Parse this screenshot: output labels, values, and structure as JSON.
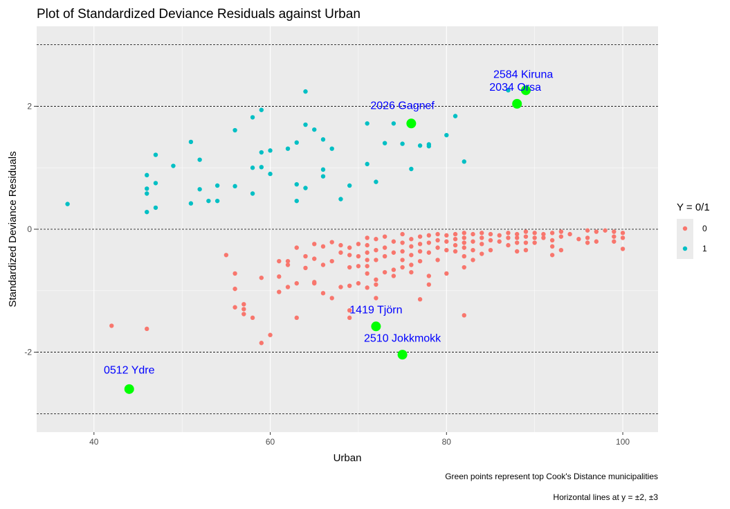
{
  "chart_data": {
    "type": "scatter",
    "title": "Plot of Standardized Deviance Residuals against Urban",
    "xlabel": "Urban",
    "ylabel": "Standardized Deviance Residuals",
    "xlim": [
      33.5,
      104
    ],
    "ylim": [
      -3.3,
      3.3
    ],
    "xticks": [
      40,
      60,
      80,
      100
    ],
    "yticks": [
      -2,
      0,
      2
    ],
    "reference_lines_y": [
      -3,
      -2,
      0,
      2,
      3
    ],
    "grid": true,
    "legend": {
      "title": "Y = 0/1",
      "placement": "right",
      "entries": [
        {
          "label": "0",
          "color": "#F8766D"
        },
        {
          "label": "1",
          "color": "#00BFC4"
        }
      ]
    },
    "captions": [
      "Green points represent top Cook's Distance municipalities",
      "Horizontal lines at y = ±2, ±3"
    ],
    "series": [
      {
        "name": "1",
        "color": "#00BFC4",
        "points": [
          [
            37,
            0.41
          ],
          [
            46,
            0.88
          ],
          [
            46,
            0.66
          ],
          [
            46,
            0.58
          ],
          [
            46,
            0.28
          ],
          [
            47,
            1.21
          ],
          [
            47,
            0.75
          ],
          [
            47,
            0.35
          ],
          [
            49,
            1.03
          ],
          [
            51,
            1.42
          ],
          [
            51,
            0.42
          ],
          [
            52,
            1.13
          ],
          [
            52,
            0.65
          ],
          [
            53,
            0.46
          ],
          [
            54,
            0.71
          ],
          [
            54,
            0.46
          ],
          [
            56,
            1.61
          ],
          [
            56,
            0.7
          ],
          [
            58,
            1.82
          ],
          [
            58,
            1.0
          ],
          [
            58,
            0.58
          ],
          [
            59,
            1.94
          ],
          [
            59,
            1.25
          ],
          [
            59,
            1.01
          ],
          [
            60,
            1.28
          ],
          [
            60,
            0.9
          ],
          [
            62,
            1.31
          ],
          [
            63,
            1.41
          ],
          [
            63,
            0.73
          ],
          [
            63,
            0.46
          ],
          [
            64,
            2.24
          ],
          [
            64,
            1.7
          ],
          [
            64,
            0.67
          ],
          [
            65,
            1.62
          ],
          [
            66,
            1.46
          ],
          [
            66,
            0.97
          ],
          [
            66,
            0.86
          ],
          [
            67,
            1.31
          ],
          [
            68,
            0.49
          ],
          [
            69,
            0.71
          ],
          [
            71,
            1.72
          ],
          [
            71,
            1.06
          ],
          [
            72,
            0.77
          ],
          [
            73,
            1.4
          ],
          [
            74,
            1.72
          ],
          [
            75,
            1.39
          ],
          [
            76,
            0.98
          ],
          [
            77,
            1.36
          ],
          [
            78,
            1.38
          ],
          [
            78,
            1.35
          ],
          [
            80,
            1.53
          ],
          [
            81,
            1.84
          ],
          [
            82,
            1.1
          ],
          [
            87,
            2.26
          ]
        ]
      },
      {
        "name": "0",
        "color": "#F8766D",
        "points": [
          [
            42,
            -1.57
          ],
          [
            46,
            -1.62
          ],
          [
            55,
            -0.42
          ],
          [
            56,
            -0.72
          ],
          [
            56,
            -0.97
          ],
          [
            56,
            -1.27
          ],
          [
            57,
            -1.22
          ],
          [
            57,
            -1.3
          ],
          [
            57,
            -1.38
          ],
          [
            58,
            -1.44
          ],
          [
            59,
            -0.79
          ],
          [
            59,
            -1.85
          ],
          [
            60,
            -1.72
          ],
          [
            61,
            -0.52
          ],
          [
            61,
            -0.77
          ],
          [
            61,
            -1.02
          ],
          [
            62,
            -0.52
          ],
          [
            62,
            -0.58
          ],
          [
            62,
            -0.94
          ],
          [
            63,
            -0.3
          ],
          [
            63,
            -0.88
          ],
          [
            63,
            -1.44
          ],
          [
            64,
            -0.44
          ],
          [
            64,
            -0.63
          ],
          [
            65,
            -0.24
          ],
          [
            65,
            -0.48
          ],
          [
            65,
            -0.86
          ],
          [
            65,
            -0.88
          ],
          [
            66,
            -0.28
          ],
          [
            66,
            -0.58
          ],
          [
            66,
            -1.04
          ],
          [
            67,
            -0.21
          ],
          [
            67,
            -0.52
          ],
          [
            67,
            -1.12
          ],
          [
            68,
            -0.26
          ],
          [
            68,
            -0.38
          ],
          [
            68,
            -0.94
          ],
          [
            69,
            -0.3
          ],
          [
            69,
            -0.42
          ],
          [
            69,
            -0.62
          ],
          [
            69,
            -0.92
          ],
          [
            69,
            -1.32
          ],
          [
            69,
            -1.44
          ],
          [
            70,
            -0.24
          ],
          [
            70,
            -0.44
          ],
          [
            70,
            -0.6
          ],
          [
            70,
            -0.88
          ],
          [
            71,
            -0.14
          ],
          [
            71,
            -0.26
          ],
          [
            71,
            -0.38
          ],
          [
            71,
            -0.5
          ],
          [
            71,
            -0.6
          ],
          [
            71,
            -0.72
          ],
          [
            71,
            -0.95
          ],
          [
            72,
            -0.16
          ],
          [
            72,
            -0.34
          ],
          [
            72,
            -0.5
          ],
          [
            72,
            -0.82
          ],
          [
            72,
            -0.9
          ],
          [
            72,
            -1.12
          ],
          [
            73,
            -0.12
          ],
          [
            73,
            -0.3
          ],
          [
            73,
            -0.44
          ],
          [
            73,
            -0.7
          ],
          [
            74,
            -0.2
          ],
          [
            74,
            -0.38
          ],
          [
            74,
            -0.66
          ],
          [
            74,
            -0.76
          ],
          [
            75,
            -0.08
          ],
          [
            75,
            -0.22
          ],
          [
            75,
            -0.36
          ],
          [
            75,
            -0.5
          ],
          [
            75,
            -0.62
          ],
          [
            76,
            -0.16
          ],
          [
            76,
            -0.28
          ],
          [
            76,
            -0.42
          ],
          [
            76,
            -0.58
          ],
          [
            76,
            -0.7
          ],
          [
            77,
            -0.12
          ],
          [
            77,
            -0.24
          ],
          [
            77,
            -0.36
          ],
          [
            77,
            -0.52
          ],
          [
            77,
            -1.14
          ],
          [
            78,
            -0.1
          ],
          [
            78,
            -0.22
          ],
          [
            78,
            -0.38
          ],
          [
            78,
            -0.76
          ],
          [
            78,
            -0.9
          ],
          [
            79,
            -0.08
          ],
          [
            79,
            -0.18
          ],
          [
            79,
            -0.3
          ],
          [
            79,
            -0.5
          ],
          [
            80,
            -0.1
          ],
          [
            80,
            -0.2
          ],
          [
            80,
            -0.34
          ],
          [
            80,
            -0.72
          ],
          [
            81,
            -0.08
          ],
          [
            81,
            -0.16
          ],
          [
            81,
            -0.26
          ],
          [
            81,
            -0.36
          ],
          [
            82,
            -0.06
          ],
          [
            82,
            -0.14
          ],
          [
            82,
            -0.22
          ],
          [
            82,
            -0.3
          ],
          [
            82,
            -0.44
          ],
          [
            82,
            -0.62
          ],
          [
            82,
            -1.4
          ],
          [
            83,
            -0.08
          ],
          [
            83,
            -0.2
          ],
          [
            83,
            -0.34
          ],
          [
            83,
            -0.5
          ],
          [
            84,
            -0.06
          ],
          [
            84,
            -0.14
          ],
          [
            84,
            -0.24
          ],
          [
            84,
            -0.4
          ],
          [
            85,
            -0.08
          ],
          [
            85,
            -0.18
          ],
          [
            85,
            -0.34
          ],
          [
            86,
            -0.1
          ],
          [
            86,
            -0.2
          ],
          [
            87,
            -0.06
          ],
          [
            87,
            -0.14
          ],
          [
            87,
            -0.26
          ],
          [
            88,
            -0.08
          ],
          [
            88,
            -0.14
          ],
          [
            88,
            -0.22
          ],
          [
            88,
            -0.36
          ],
          [
            89,
            -0.04
          ],
          [
            89,
            -0.12
          ],
          [
            89,
            -0.22
          ],
          [
            89,
            -0.34
          ],
          [
            90,
            -0.06
          ],
          [
            90,
            -0.14
          ],
          [
            90,
            -0.22
          ],
          [
            91,
            -0.08
          ],
          [
            91,
            -0.14
          ],
          [
            92,
            -0.06
          ],
          [
            92,
            -0.18
          ],
          [
            92,
            -0.28
          ],
          [
            92,
            -0.42
          ],
          [
            93,
            -0.04
          ],
          [
            93,
            -0.12
          ],
          [
            93,
            -0.34
          ],
          [
            94,
            -0.08
          ],
          [
            95,
            -0.16
          ],
          [
            96,
            -0.02
          ],
          [
            96,
            -0.14
          ],
          [
            96,
            -0.22
          ],
          [
            97,
            -0.04
          ],
          [
            97,
            -0.2
          ],
          [
            98,
            -0.02
          ],
          [
            99,
            -0.04
          ],
          [
            99,
            -0.12
          ],
          [
            99,
            -0.2
          ],
          [
            100,
            -0.06
          ],
          [
            100,
            -0.14
          ],
          [
            100,
            -0.32
          ]
        ]
      }
    ],
    "highlighted": {
      "color": "#00FF00",
      "points": [
        {
          "x": 44,
          "y": -2.6,
          "label": "0512 Ydre",
          "label_x": 44,
          "label_y": -2.28
        },
        {
          "x": 75,
          "y": -2.04,
          "label": "2510 Jokkmokk",
          "label_x": 75,
          "label_y": -1.76
        },
        {
          "x": 72,
          "y": -1.58,
          "label": "1419 Tjörn",
          "label_x": 72,
          "label_y": -1.3
        },
        {
          "x": 76,
          "y": 1.72,
          "label": "2026 Gagnef",
          "label_x": 75,
          "label_y": 2.02
        },
        {
          "x": 88,
          "y": 2.04,
          "label": "2034 Orsa",
          "label_x": 87.8,
          "label_y": 2.32
        },
        {
          "x": 89,
          "y": 2.26,
          "label": "2584 Kiruna",
          "label_x": 88.7,
          "label_y": 2.53
        }
      ]
    }
  }
}
